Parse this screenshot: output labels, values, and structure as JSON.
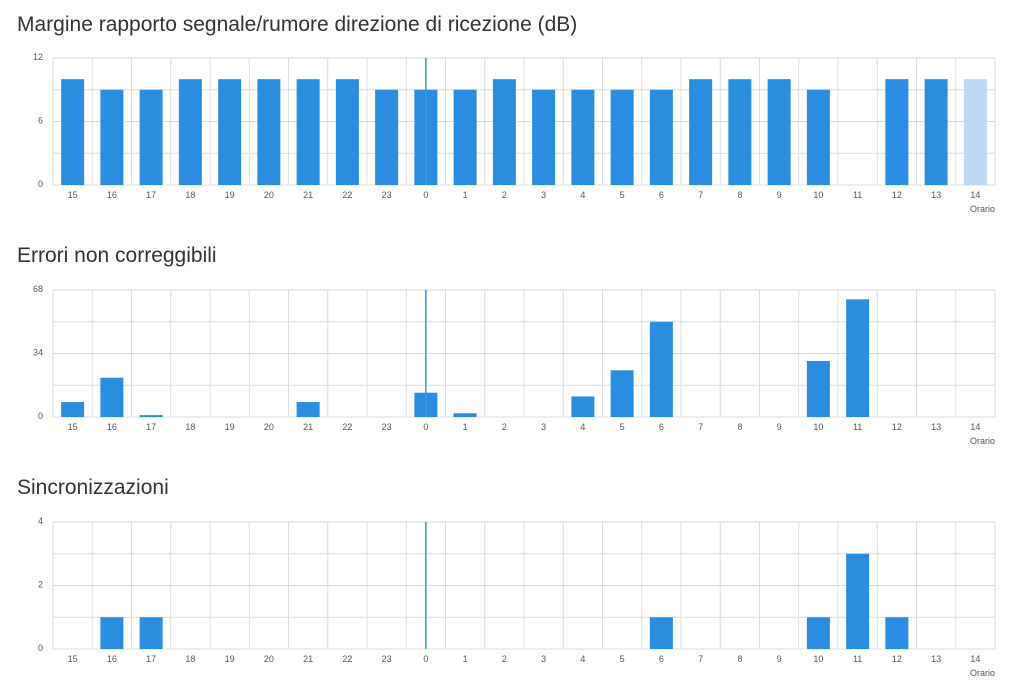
{
  "colors": {
    "bar": "#2a8de0",
    "bar_partial": "#bcdaf3",
    "grid": "#dcdcdc",
    "marker": "#3a95dc",
    "text": "#555555",
    "title": "#333333"
  },
  "chart_data": [
    {
      "type": "bar",
      "title": "Margine rapporto segnale/rumore direzione di ricezione (dB)",
      "xlabel": "Orario",
      "ylabel": "",
      "categories": [
        "15",
        "16",
        "17",
        "18",
        "19",
        "20",
        "21",
        "22",
        "23",
        "0",
        "1",
        "2",
        "3",
        "4",
        "5",
        "6",
        "7",
        "8",
        "9",
        "10",
        "11",
        "12",
        "13",
        "14"
      ],
      "values": [
        10,
        9,
        9,
        10,
        10,
        10,
        10,
        10,
        9,
        9,
        9,
        10,
        9,
        9,
        9,
        9,
        10,
        10,
        10,
        9,
        null,
        10,
        10,
        10
      ],
      "partial_categories": [
        "14"
      ],
      "marker_category": "0",
      "ylim": [
        0,
        12
      ],
      "yticks": [
        "12",
        "6",
        "0"
      ],
      "grid": true
    },
    {
      "type": "bar",
      "title": "Errori non correggibili",
      "xlabel": "Orario",
      "ylabel": "",
      "categories": [
        "15",
        "16",
        "17",
        "18",
        "19",
        "20",
        "21",
        "22",
        "23",
        "0",
        "1",
        "2",
        "3",
        "4",
        "5",
        "6",
        "7",
        "8",
        "9",
        "10",
        "11",
        "12",
        "13",
        "14"
      ],
      "values": [
        8,
        21,
        1,
        0,
        0,
        0,
        8,
        0,
        0,
        13,
        2,
        0,
        0,
        11,
        25,
        51,
        0,
        0,
        0,
        30,
        63,
        0,
        0,
        0
      ],
      "partial_categories": [],
      "marker_category": "0",
      "ylim": [
        0,
        68
      ],
      "yticks": [
        "68",
        "34",
        "0"
      ],
      "grid": true
    },
    {
      "type": "bar",
      "title": "Sincronizzazioni",
      "xlabel": "Orario",
      "ylabel": "",
      "categories": [
        "15",
        "16",
        "17",
        "18",
        "19",
        "20",
        "21",
        "22",
        "23",
        "0",
        "1",
        "2",
        "3",
        "4",
        "5",
        "6",
        "7",
        "8",
        "9",
        "10",
        "11",
        "12",
        "13",
        "14"
      ],
      "values": [
        0,
        1,
        1,
        0,
        0,
        0,
        0,
        0,
        0,
        0,
        0,
        0,
        0,
        0,
        0,
        1,
        0,
        0,
        0,
        1,
        3,
        1,
        0,
        0
      ],
      "partial_categories": [],
      "marker_category": "0",
      "ylim": [
        0,
        4
      ],
      "yticks": [
        "4",
        "2",
        "0"
      ],
      "grid": true
    }
  ]
}
